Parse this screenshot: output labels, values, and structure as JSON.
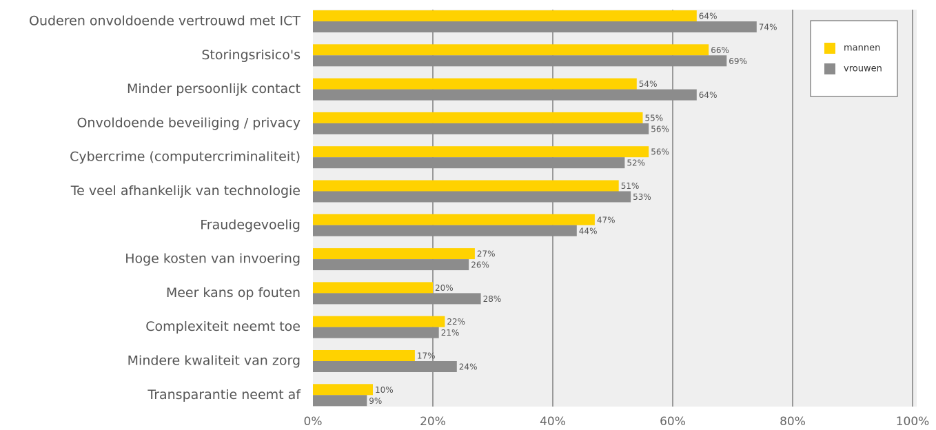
{
  "chart_data": {
    "type": "bar",
    "orientation": "horizontal",
    "categories": [
      "Ouderen onvoldoende vertrouwd met ICT",
      "Storingsrisico's",
      "Minder persoonlijk contact",
      "Onvoldoende beveiliging / privacy",
      "Cybercrime (computercriminaliteit)",
      "Te veel afhankelijk van technologie",
      "Fraudegevoelig",
      "Hoge kosten van invoering",
      "Meer kans op fouten",
      "Complexiteit neemt toe",
      "Mindere kwaliteit van zorg",
      "Transparantie neemt af"
    ],
    "series": [
      {
        "name": "mannen",
        "color": "#ffd200",
        "values": [
          64,
          66,
          54,
          55,
          56,
          51,
          47,
          27,
          20,
          22,
          17,
          10
        ],
        "value_labels": [
          "64%",
          "66%",
          "54%",
          "55%",
          "56%",
          "51%",
          "47%",
          "27%",
          "20%",
          "22%",
          "17%",
          "10%"
        ]
      },
      {
        "name": "vrouwen",
        "color": "#8c8c8c",
        "values": [
          74,
          69,
          64,
          56,
          52,
          53,
          44,
          26,
          28,
          21,
          24,
          9
        ],
        "value_labels": [
          "74%",
          "69%",
          "64%",
          "56%",
          "52%",
          "53%",
          "44%",
          "26%",
          "28%",
          "21%",
          "24%",
          "9%"
        ]
      }
    ],
    "xlim": [
      0,
      100
    ],
    "xticks": [
      {
        "value": 0,
        "label": "0%"
      },
      {
        "value": 20,
        "label": "20%"
      },
      {
        "value": 40,
        "label": "40%"
      },
      {
        "value": 60,
        "label": "60%"
      },
      {
        "value": 80,
        "label": "80%"
      },
      {
        "value": 100,
        "label": "100%"
      }
    ],
    "grid": true,
    "legend": "upper right"
  }
}
